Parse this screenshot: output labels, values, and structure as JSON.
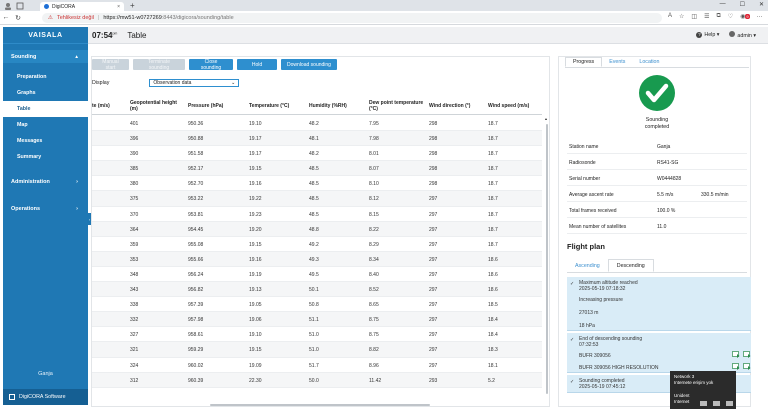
{
  "browser": {
    "tab_title": "DigiCORA",
    "tab_close": "×",
    "new_tab": "+",
    "security_warning": "Tehlikesiz değil",
    "url_host": "https://mw51-w0727269",
    "url_path": ":8443/digicora/sounding/table",
    "notif_badge": "9",
    "win_min": "—",
    "win_max": "☐",
    "win_close": "✕"
  },
  "sidebar": {
    "logo": "VAISALA",
    "sounding_section": "Sounding",
    "items": [
      "Preparation",
      "Graphs",
      "Table",
      "Map",
      "Messages",
      "Summary"
    ],
    "active_index": 2,
    "administration": "Administration",
    "operations": "Operations",
    "user_name": "Ganja",
    "footer": "DigiCORA Software"
  },
  "header": {
    "time": "07:54",
    "time_suffix": "pm",
    "page_title": "Table",
    "help": "Help",
    "user": "admin"
  },
  "toolbar": {
    "manual_start": "Manual start",
    "terminate": "Terminate sounding",
    "close": "Close sounding",
    "hold": "Hold",
    "download": "Download sounding"
  },
  "display": {
    "label": "Display",
    "selected": "Observation data"
  },
  "table": {
    "headers": [
      "te (m/s)",
      "Geopotential height (m)",
      "Pressure (hPa)",
      "Temperature (°C)",
      "Humidity (%RH)",
      "Dew point temperature (°C)",
      "Wind direction (°)",
      "Wind speed (m/s)"
    ],
    "rows": [
      [
        "",
        "401",
        "950.36",
        "19.10",
        "48.2",
        "7.95",
        "298",
        "18.7"
      ],
      [
        "",
        "396",
        "950.88",
        "19.17",
        "48.1",
        "7.98",
        "298",
        "18.7"
      ],
      [
        "",
        "390",
        "951.58",
        "19.17",
        "48.2",
        "8.01",
        "298",
        "18.7"
      ],
      [
        "",
        "385",
        "952.17",
        "19.15",
        "48.5",
        "8.07",
        "298",
        "18.7"
      ],
      [
        "",
        "380",
        "952.70",
        "19.16",
        "48.5",
        "8.10",
        "298",
        "18.7"
      ],
      [
        "",
        "375",
        "953.22",
        "19.22",
        "48.5",
        "8.12",
        "297",
        "18.7"
      ],
      [
        "",
        "370",
        "953.81",
        "19.23",
        "48.5",
        "8.15",
        "297",
        "18.7"
      ],
      [
        "",
        "364",
        "954.45",
        "19.20",
        "48.8",
        "8.22",
        "297",
        "18.7"
      ],
      [
        "",
        "359",
        "955.08",
        "19.15",
        "49.2",
        "8.29",
        "297",
        "18.7"
      ],
      [
        "",
        "353",
        "955.66",
        "19.16",
        "49.3",
        "8.34",
        "297",
        "18.6"
      ],
      [
        "",
        "348",
        "956.24",
        "19.19",
        "49.5",
        "8.40",
        "297",
        "18.6"
      ],
      [
        "",
        "343",
        "956.82",
        "19.13",
        "50.1",
        "8.52",
        "297",
        "18.6"
      ],
      [
        "",
        "338",
        "957.39",
        "19.05",
        "50.8",
        "8.65",
        "297",
        "18.5"
      ],
      [
        "",
        "332",
        "957.98",
        "19.06",
        "51.1",
        "8.75",
        "297",
        "18.4"
      ],
      [
        "",
        "327",
        "958.61",
        "19.10",
        "51.0",
        "8.75",
        "297",
        "18.4"
      ],
      [
        "",
        "321",
        "959.29",
        "19.15",
        "51.0",
        "8.82",
        "297",
        "18.3"
      ],
      [
        "",
        "324",
        "960.02",
        "19.09",
        "51.7",
        "8.96",
        "297",
        "18.1"
      ],
      [
        "",
        "312",
        "960.39",
        "22.30",
        "50.0",
        "11.42",
        "293",
        "5.2"
      ]
    ]
  },
  "progress": {
    "tabs": [
      "Progress",
      "Events",
      "Location"
    ],
    "status_line1": "Sounding",
    "status_line2": "completed",
    "kv": [
      {
        "k": "Station name",
        "v": "Ganja",
        "v2": ""
      },
      {
        "k": "Radiosonde",
        "v": "RS41-SG",
        "v2": ""
      },
      {
        "k": "Serial number",
        "v": "W0444828",
        "v2": ""
      },
      {
        "k": "Average ascent rate",
        "v": "5.5 m/s",
        "v2": "330.5 m/min"
      },
      {
        "k": "Total frames received",
        "v": "100.0 %",
        "v2": ""
      },
      {
        "k": "Mean number of satellites",
        "v": "11.0",
        "v2": ""
      }
    ]
  },
  "flight_plan": {
    "title": "Flight plan",
    "tabs": [
      "Ascending",
      "Descending"
    ],
    "block1": [
      "Maximum altitude reached",
      "2025-05-19 07:18:32",
      "Increasing pressure",
      "27013 m",
      "18 hPa"
    ],
    "block2": [
      "End of descending sounding",
      "07:32:53",
      "BUFR 309056",
      "BUFR 309056 HIGH RESOLUTION"
    ],
    "block3": [
      "Sounding completed",
      "2025-05-19 07:45:12"
    ]
  },
  "toast": {
    "line1": "Network 3",
    "line2": "Internete erişim yok",
    "line3": "Unident",
    "line4": "Internet"
  }
}
